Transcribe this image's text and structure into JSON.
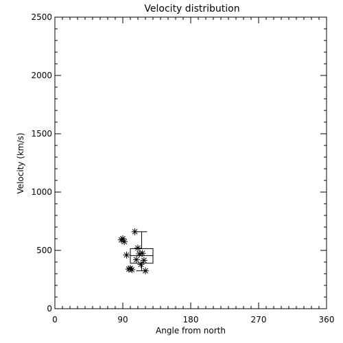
{
  "chart_data": {
    "type": "scatter",
    "title": "Velocity distribution",
    "xlabel": "Angle from north",
    "ylabel": "Velocity (km/s)",
    "xlim": [
      0,
      360
    ],
    "ylim": [
      0,
      2500
    ],
    "xticks": [
      0,
      90,
      180,
      270,
      360
    ],
    "xtick_labels": [
      "0",
      "90",
      "180",
      "270",
      "360"
    ],
    "yticks": [
      0,
      500,
      1000,
      1500,
      2000,
      2500
    ],
    "ytick_labels": [
      "0",
      "500",
      "1000",
      "1500",
      "2000",
      "2500"
    ],
    "grid": false,
    "marker": "asterisk",
    "points": [
      {
        "x": 88,
        "y": 590
      },
      {
        "x": 90,
        "y": 600
      },
      {
        "x": 92,
        "y": 575
      },
      {
        "x": 95,
        "y": 460
      },
      {
        "x": 98,
        "y": 340
      },
      {
        "x": 100,
        "y": 345
      },
      {
        "x": 102,
        "y": 335
      },
      {
        "x": 106,
        "y": 660
      },
      {
        "x": 108,
        "y": 420
      },
      {
        "x": 110,
        "y": 520
      },
      {
        "x": 112,
        "y": 470
      },
      {
        "x": 114,
        "y": 380
      },
      {
        "x": 116,
        "y": 475
      },
      {
        "x": 118,
        "y": 415
      },
      {
        "x": 120,
        "y": 325
      }
    ],
    "boxplot": {
      "x_min": 100,
      "x_max": 130,
      "whisker_low": 325,
      "q1": 390,
      "median": 455,
      "q3": 515,
      "whisker_high": 660,
      "whisker_x": 115
    }
  }
}
